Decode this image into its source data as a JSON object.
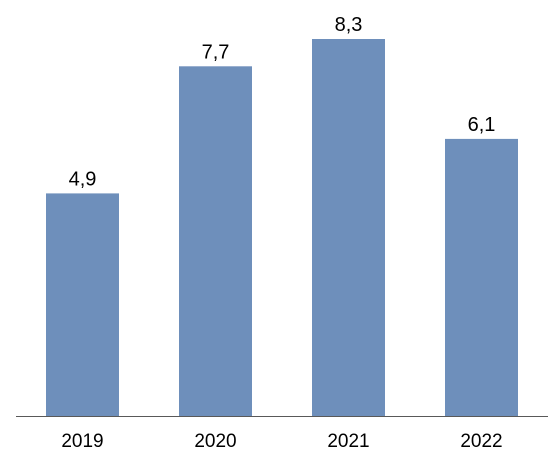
{
  "chart_data": {
    "type": "bar",
    "categories": [
      "2019",
      "2020",
      "2021",
      "2022"
    ],
    "values": [
      4.9,
      7.7,
      8.3,
      6.1
    ],
    "value_labels": [
      "4,9",
      "7,7",
      "8,3",
      "6,1"
    ],
    "title": "",
    "xlabel": "",
    "ylabel": "",
    "ylim": [
      0,
      8.3
    ],
    "grid": false,
    "legend": "none",
    "bar_color": "#6e8fbb",
    "axis_color": "#595959"
  }
}
